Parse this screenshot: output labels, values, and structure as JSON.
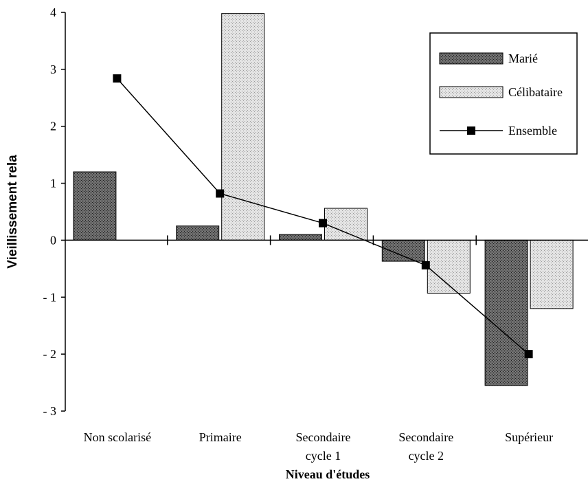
{
  "chart_data": {
    "type": "bar",
    "xlabel": "Niveau d'études",
    "ylabel": "Vieillissement rela",
    "ylim": [
      -3,
      4
    ],
    "yticks": [
      {
        "value": 4,
        "label": "4"
      },
      {
        "value": 3,
        "label": "3"
      },
      {
        "value": 2,
        "label": "2"
      },
      {
        "value": 1,
        "label": "1"
      },
      {
        "value": 0,
        "label": "0"
      },
      {
        "value": -1,
        "label": "- 1"
      },
      {
        "value": -2,
        "label": "- 2"
      },
      {
        "value": -3,
        "label": "- 3"
      }
    ],
    "categories": [
      [
        "Non scolarisé"
      ],
      [
        "Primaire"
      ],
      [
        "Secondaire",
        "cycle 1"
      ],
      [
        "Secondaire",
        "cycle 2"
      ],
      [
        "Supérieur"
      ]
    ],
    "series": [
      {
        "name": "Marié",
        "kind": "bar",
        "color": "#555555",
        "values": [
          1.2,
          0.25,
          0.1,
          -0.37,
          -2.55
        ]
      },
      {
        "name": "Célibataire",
        "kind": "bar",
        "color": "#d9d9d9",
        "values": [
          null,
          3.98,
          0.56,
          -0.93,
          -1.2
        ]
      },
      {
        "name": "Ensemble",
        "kind": "line",
        "color": "#000000",
        "values": [
          2.84,
          0.82,
          0.3,
          -0.44,
          -2.0
        ]
      }
    ],
    "legend": {
      "position": "top-right"
    },
    "grid": false
  }
}
